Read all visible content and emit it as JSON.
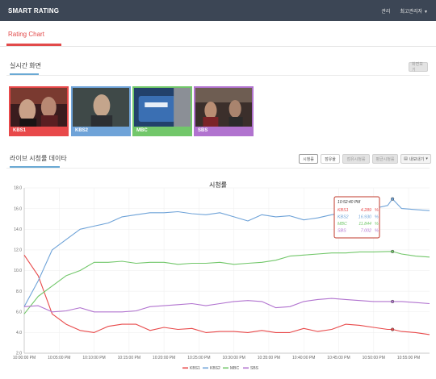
{
  "app": {
    "brand": "SMART RATING"
  },
  "topnav": {
    "item1": "관리",
    "item2": "최고관리자"
  },
  "tab": {
    "label": "Rating Chart"
  },
  "live": {
    "title": "실시간 화면",
    "button": "화면보기",
    "channels": [
      {
        "name": "KBS1",
        "color": "#e8494a"
      },
      {
        "name": "KBS2",
        "color": "#6fa3d8"
      },
      {
        "name": "MBC",
        "color": "#72c76a"
      },
      {
        "name": "SBS",
        "color": "#b173cf"
      }
    ]
  },
  "ratings": {
    "title": "라이브 시청률 데이타",
    "buttons": [
      "시청률",
      "점유율",
      "점유시청률",
      "평균시청률",
      "내보내기"
    ]
  },
  "chart_data": {
    "type": "line",
    "title": "시청률",
    "ylim": [
      2.0,
      18.0
    ],
    "yticks": [
      "2.0",
      "4.0",
      "6.0",
      "8.0",
      "10.0",
      "12.0",
      "14.0",
      "16.0",
      "18.0"
    ],
    "xticks": [
      "10:00:00 PM",
      "10:05:00 PM",
      "10:10:00 PM",
      "10:15:00 PM",
      "10:20:00 PM",
      "10:25:00 PM",
      "10:30:00 PM",
      "10:35:00 PM",
      "10:40:00 PM",
      "10:45:00 PM",
      "10:50:00 PM",
      "10:55:00 PM"
    ],
    "x": [
      0,
      2,
      4,
      6,
      8,
      10,
      12,
      14,
      16,
      18,
      20,
      22,
      24,
      26,
      28,
      30,
      32,
      34,
      36,
      38,
      40,
      42,
      44,
      46,
      48,
      50,
      52,
      52.7,
      54,
      56,
      58
    ],
    "series": [
      {
        "name": "KBS1",
        "color": "#e8494a",
        "values": [
          11.5,
          9.5,
          5.8,
          4.8,
          4.2,
          4.0,
          4.6,
          4.8,
          4.8,
          4.2,
          4.5,
          4.3,
          4.4,
          4.0,
          4.1,
          4.1,
          4.0,
          4.2,
          4.0,
          4.0,
          4.4,
          4.1,
          4.3,
          4.8,
          4.7,
          4.5,
          4.3,
          4.3,
          4.1,
          4.0,
          3.8
        ]
      },
      {
        "name": "KBS2",
        "color": "#6fa3d8",
        "values": [
          6.5,
          9.0,
          12.0,
          13.0,
          14.0,
          14.3,
          14.6,
          15.2,
          15.4,
          15.6,
          15.6,
          15.7,
          15.5,
          15.4,
          15.6,
          15.2,
          14.8,
          15.4,
          15.2,
          15.3,
          14.9,
          15.1,
          15.4,
          15.6,
          15.8,
          16.0,
          16.3,
          16.93,
          16.0,
          15.9,
          15.8
        ]
      },
      {
        "name": "MBC",
        "color": "#72c76a",
        "values": [
          5.8,
          7.5,
          8.5,
          9.5,
          10.0,
          10.8,
          10.8,
          10.9,
          10.7,
          10.8,
          10.8,
          10.6,
          10.7,
          10.7,
          10.8,
          10.6,
          10.7,
          10.8,
          11.0,
          11.4,
          11.5,
          11.6,
          11.7,
          11.7,
          11.8,
          11.8,
          11.84,
          11.84,
          11.6,
          11.4,
          11.3
        ]
      },
      {
        "name": "SBS",
        "color": "#b173cf",
        "values": [
          6.5,
          6.6,
          6.0,
          6.1,
          6.4,
          6.0,
          6.0,
          6.0,
          6.1,
          6.5,
          6.6,
          6.7,
          6.8,
          6.6,
          6.8,
          7.0,
          7.1,
          7.0,
          6.4,
          6.5,
          7.0,
          7.2,
          7.3,
          7.2,
          7.1,
          7.0,
          7.0,
          7.0,
          7.0,
          6.9,
          6.8
        ]
      }
    ],
    "tooltip": {
      "time": "10:52:40 PM",
      "rows": [
        {
          "ch": "KBS1",
          "val": "4.289",
          "unit": "%"
        },
        {
          "ch": "KBS2",
          "val": "16.930",
          "unit": "%"
        },
        {
          "ch": "MBC",
          "val": "11.844",
          "unit": "%"
        },
        {
          "ch": "SBS",
          "val": "7.002",
          "unit": "%"
        }
      ]
    },
    "legend": [
      "KBS1",
      "KBS2",
      "MBC",
      "SBS"
    ],
    "legend_placement": "bottom-center",
    "grid": true
  }
}
